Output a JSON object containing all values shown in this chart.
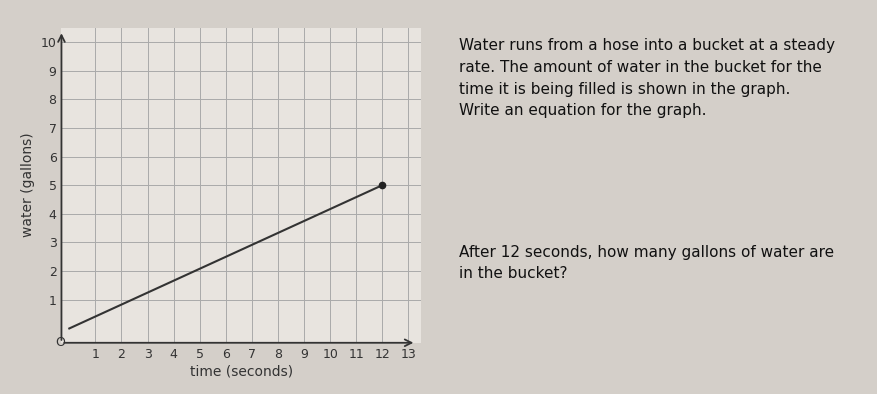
{
  "line_x": [
    0,
    12
  ],
  "line_y": [
    0,
    5
  ],
  "endpoint_x": 12,
  "endpoint_y": 5,
  "xlim": [
    -0.3,
    13.5
  ],
  "ylim": [
    -0.5,
    10.5
  ],
  "xticks": [
    1,
    2,
    3,
    4,
    5,
    6,
    7,
    8,
    9,
    10,
    11,
    12,
    13
  ],
  "yticks": [
    1,
    2,
    3,
    4,
    5,
    6,
    7,
    8,
    9,
    10
  ],
  "xlabel": "time (seconds)",
  "ylabel": "water (gallons)",
  "line_color": "#333333",
  "dot_color": "#222222",
  "overall_bg": "#d4cfc9",
  "graph_bg": "#e8e4df",
  "right_panel_bg": "#e8e6ea",
  "right_border_color": "#555555",
  "grid_color": "#aaaaaa",
  "axes_color": "#333333",
  "tick_color": "#333333",
  "font_size_ticks": 9,
  "font_size_label": 10,
  "font_size_right": 11,
  "text_color": "#111111",
  "origin_label": "O",
  "right_text_top": "Water runs from a hose into a bucket at a steady\nrate. The amount of water in the bucket for the\ntime it is being filled is shown in the graph.\nWrite an equation for the graph.",
  "right_text_bottom": "After 12 seconds, how many gallons of water are\nin the bucket?"
}
